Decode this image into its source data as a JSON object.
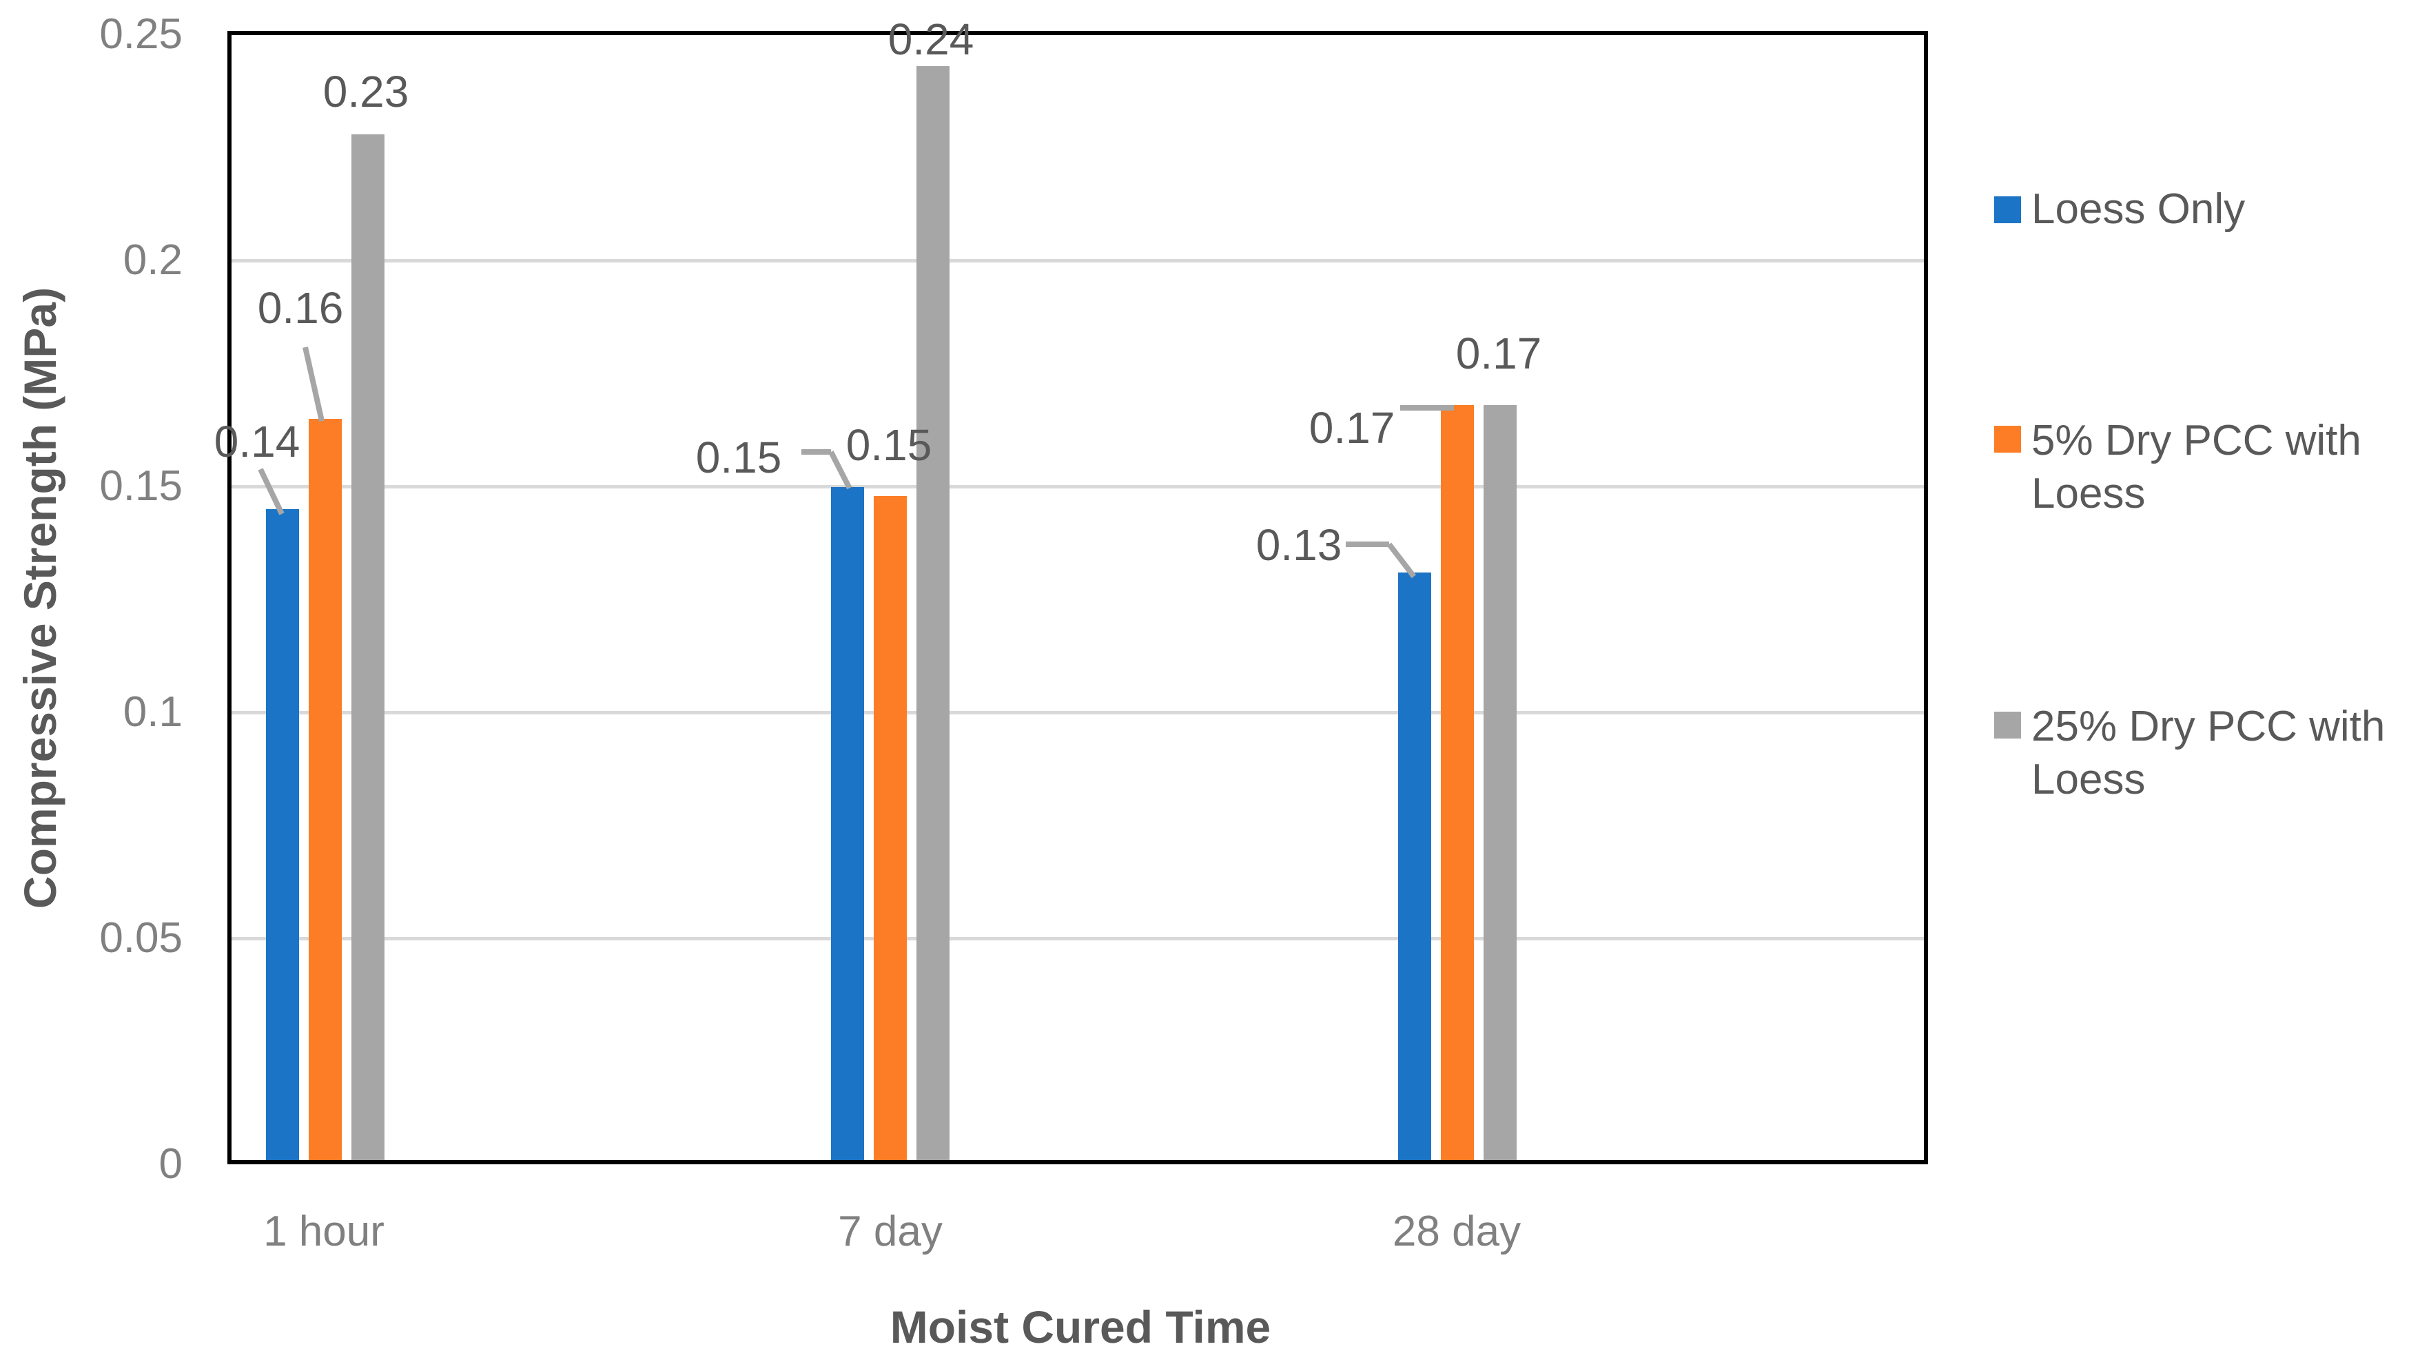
{
  "chart_data": {
    "type": "bar",
    "title": "",
    "xlabel": "Moist Cured Time",
    "ylabel": "Compressive Strength (MPa)",
    "categories": [
      "1 hour",
      "7 day",
      "28 day"
    ],
    "series": [
      {
        "name": "Loess Only",
        "color": "#1B74C5",
        "values": [
          0.144,
          0.149,
          0.13
        ],
        "data_labels": [
          "0.14",
          "0.15",
          "0.13"
        ]
      },
      {
        "name": "5% Dry PCC with Loess",
        "color": "#FC7D25",
        "values": [
          0.164,
          0.147,
          0.167
        ],
        "data_labels": [
          "0.16",
          "0.15",
          "0.17"
        ]
      },
      {
        "name": "25% Dry PCC with Loess",
        "color": "#A6A6A6",
        "values": [
          0.227,
          0.242,
          0.167
        ],
        "data_labels": [
          "0.23",
          "0.24",
          "0.17"
        ]
      }
    ],
    "ylim": [
      0,
      0.25
    ],
    "yticks": [
      {
        "value": 0.25,
        "label": "0.25"
      },
      {
        "value": 0.2,
        "label": "0.2"
      },
      {
        "value": 0.15,
        "label": "0.15"
      },
      {
        "value": 0.1,
        "label": "0.1"
      },
      {
        "value": 0.05,
        "label": "0.05"
      },
      {
        "value": 0,
        "label": "0"
      }
    ],
    "gridlines": [
      0.05,
      0.1,
      0.15,
      0.2
    ],
    "grid": true,
    "legend_position": "right",
    "legend": {
      "items": [
        {
          "series": "Loess Only",
          "lines": [
            "Loess Only"
          ],
          "color": "#1B74C5"
        },
        {
          "series": "5% Dry PCC with Loess",
          "lines": [
            "5% Dry PCC with",
            "Loess"
          ],
          "color": "#FC7D25"
        },
        {
          "series": "25% Dry PCC with Loess",
          "lines": [
            "25% Dry PCC with",
            "Loess"
          ],
          "color": "#A6A6A6"
        }
      ]
    },
    "colors": {
      "plot_border": "#000000",
      "gridline": "#D9D9D9",
      "tick_text": "#808080",
      "label_text": "#595959",
      "leader_line": "#A6A6A6",
      "background": "#FFFFFF"
    }
  }
}
